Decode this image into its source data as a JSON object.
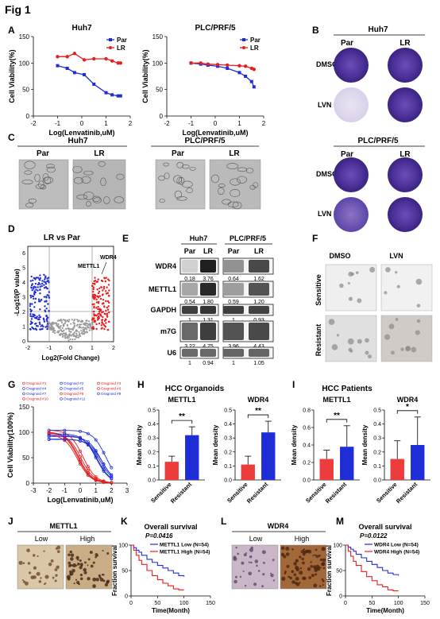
{
  "figure_title": "Fig 1",
  "panels": {
    "A": "A",
    "B": "B",
    "C": "C",
    "D": "D",
    "E": "E",
    "F": "F",
    "G": "G",
    "H": "H",
    "I": "I",
    "J": "J",
    "K": "K",
    "L": "L",
    "M": "M"
  },
  "colors": {
    "par": "#1f2dd6",
    "lr": "#e81d1d",
    "blue_bar": "#1f2dd6",
    "red_bar": "#ee3b3b",
    "crystal": "#5b3fa8"
  },
  "panel_A": {
    "ylabel": "Cell Viability(%)",
    "xlabel": "Log(Lenvatinib,uM)",
    "legend": [
      "Par",
      "LR"
    ]
  },
  "panel_B": {
    "cell_lines": [
      "Huh7",
      "PLC/PRF/5"
    ],
    "columns": [
      "Par",
      "LR"
    ],
    "rows": [
      "DMSO",
      "LVN"
    ]
  },
  "panel_C": {
    "cell_lines": [
      "Huh7",
      "PLC/PRF/5"
    ],
    "columns": [
      "Par",
      "LR"
    ]
  },
  "panel_D": {
    "title": "LR vs Par",
    "ylabel": "-Log10(P value)",
    "xlabel": "Log2(Fold Change)",
    "annot1": "METTL1",
    "annot2": "WDR4",
    "xticks": [
      "-2",
      "-1",
      "0",
      "1",
      "2"
    ],
    "yticks": [
      "0",
      "1",
      "2",
      "3",
      "4",
      "5",
      "6"
    ]
  },
  "panel_E": {
    "cell_lines": [
      "Huh7",
      "PLC/PRF/5"
    ],
    "columns": [
      "Par",
      "LR",
      "Par",
      "LR"
    ],
    "rows": [
      {
        "label": "WDR4",
        "values": [
          "0.18",
          "3.76",
          "0.64",
          "1.62"
        ]
      },
      {
        "label": "METTL1",
        "values": [
          "0.54",
          "1.80",
          "0.59",
          "1.20"
        ]
      },
      {
        "label": "GAPDH",
        "values": [
          "1",
          "1.31",
          "1",
          "0.93"
        ]
      },
      {
        "label": "m7G",
        "values": [
          "3.22",
          "4.75",
          "3.96",
          "4.43"
        ]
      },
      {
        "label": "U6",
        "values": [
          "1",
          "0.94",
          "1",
          "1.05"
        ]
      }
    ]
  },
  "panel_F": {
    "columns": [
      "DMSO",
      "LVN"
    ],
    "rows": [
      "Sensitive",
      "Resistant"
    ]
  },
  "panel_G": {
    "ylabel": "Cell Viability(100%)",
    "xlabel": "Log(Lenvatinib,uM)",
    "legend": [
      "Oragnoid #1",
      "Oragnoid #2",
      "Oragnoid #3",
      "Oragnoid #4",
      "Oragnoid #5",
      "Oragnoid #6",
      "Oragnoid #7",
      "Oragnoid #8",
      "Oragnoid #9",
      "Oragnoid #10",
      "Oragnoid #11"
    ]
  },
  "panel_H": {
    "title": "HCC Organoids",
    "genes": [
      "METTL1",
      "WDR4"
    ],
    "ylabel": "Mean density",
    "groups": [
      "Sensitive",
      "Resistant"
    ],
    "sig": [
      "**",
      "**"
    ]
  },
  "panel_I": {
    "title": "HCC Patients",
    "genes": [
      "METTL1",
      "WDR4"
    ],
    "ylabel": "Mean density",
    "groups": [
      "Sensitive",
      "Resistant"
    ],
    "sig": [
      "**",
      "*"
    ]
  },
  "panel_J": {
    "gene": "METTL1",
    "columns": [
      "Low",
      "High"
    ]
  },
  "panel_K": {
    "title": "Overall survival",
    "pvalue": "P=0.0416",
    "legend": [
      "METTL1 Low (N=54)",
      "METTL1 High (N=54)"
    ],
    "ylabel": "Fraction survival",
    "xlabel": "Time(Month)"
  },
  "panel_L": {
    "gene": "WDR4",
    "columns": [
      "Low",
      "High"
    ]
  },
  "panel_M": {
    "title": "Overall survival",
    "pvalue": "P=0.0122",
    "legend": [
      "WDR4 Low (N=54)",
      "WDR4 High (N=54)"
    ],
    "ylabel": "Fraction survival",
    "xlabel": "Time(Month)"
  },
  "chart_data": [
    {
      "id": "A-Huh7",
      "type": "line",
      "title": "Huh7",
      "xlabel": "Log(Lenvatinib,uM)",
      "ylabel": "Cell Viability(%)",
      "xlim": [
        -2,
        2
      ],
      "ylim": [
        0,
        150
      ],
      "xticks": [
        -2,
        -1,
        0,
        1,
        2
      ],
      "yticks": [
        0,
        50,
        100,
        150
      ],
      "series": [
        {
          "name": "Par",
          "x": [
            -1,
            -0.6,
            -0.3,
            0.1,
            0.5,
            1,
            1.25,
            1.5,
            1.6
          ],
          "y": [
            95,
            90,
            82,
            78,
            60,
            44,
            40,
            38,
            38
          ]
        },
        {
          "name": "LR",
          "x": [
            -1,
            -0.6,
            -0.3,
            0.1,
            0.5,
            1,
            1.25,
            1.5,
            1.6
          ],
          "y": [
            112,
            112,
            118,
            106,
            108,
            108,
            104,
            100,
            100
          ]
        }
      ]
    },
    {
      "id": "A-PLC",
      "type": "line",
      "title": "PLC/PRF/5",
      "xlabel": "Log(Lenvatinib,uM)",
      "ylabel": "Cell Viability(%)",
      "xlim": [
        -2,
        2
      ],
      "ylim": [
        0,
        150
      ],
      "xticks": [
        -2,
        -1,
        0,
        1,
        2
      ],
      "yticks": [
        0,
        50,
        100,
        150
      ],
      "series": [
        {
          "name": "Par",
          "x": [
            -1,
            -0.6,
            -0.3,
            0.1,
            0.5,
            1,
            1.25,
            1.5,
            1.6
          ],
          "y": [
            100,
            98,
            96,
            94,
            90,
            82,
            75,
            65,
            55
          ]
        },
        {
          "name": "LR",
          "x": [
            -1,
            -0.6,
            -0.3,
            0.1,
            0.5,
            1,
            1.25,
            1.5,
            1.6
          ],
          "y": [
            100,
            100,
            98,
            97,
            96,
            95,
            94,
            90,
            88
          ]
        }
      ]
    },
    {
      "id": "H-METTL1",
      "type": "bar",
      "title": "METTL1",
      "categories": [
        "Sensitive",
        "Resistant"
      ],
      "values": [
        0.13,
        0.32
      ],
      "errors": [
        0.04,
        0.06
      ],
      "ylabel": "Mean density",
      "ylim": [
        0,
        0.5
      ],
      "yticks": [
        0.0,
        0.1,
        0.2,
        0.3,
        0.4,
        0.5
      ]
    },
    {
      "id": "H-WDR4",
      "type": "bar",
      "title": "WDR4",
      "categories": [
        "Sensitive",
        "Resistant"
      ],
      "values": [
        0.11,
        0.34
      ],
      "errors": [
        0.06,
        0.08
      ],
      "ylabel": "Mean density",
      "ylim": [
        0,
        0.5
      ],
      "yticks": [
        0.0,
        0.1,
        0.2,
        0.3,
        0.4,
        0.5
      ]
    },
    {
      "id": "I-METTL1",
      "type": "bar",
      "title": "METTL1",
      "categories": [
        "Sensitive",
        "Resistant"
      ],
      "values": [
        0.24,
        0.38
      ],
      "errors": [
        0.1,
        0.24
      ],
      "ylabel": "Mean density",
      "ylim": [
        0,
        0.8
      ],
      "yticks": [
        0.0,
        0.2,
        0.4,
        0.6,
        0.8
      ]
    },
    {
      "id": "I-WDR4",
      "type": "bar",
      "title": "WDR4",
      "categories": [
        "Sensitive",
        "Resistant"
      ],
      "values": [
        0.15,
        0.25
      ],
      "errors": [
        0.13,
        0.2
      ],
      "ylabel": "Mean density",
      "ylim": [
        0,
        0.5
      ],
      "yticks": [
        0.0,
        0.1,
        0.2,
        0.3,
        0.4,
        0.5
      ]
    },
    {
      "id": "K",
      "type": "line",
      "title": "Overall survival",
      "xlabel": "Time(Month)",
      "ylabel": "Fraction survival",
      "xlim": [
        0,
        150
      ],
      "ylim": [
        0,
        100
      ],
      "xticks": [
        0,
        50,
        100,
        150
      ],
      "yticks": [
        0,
        50,
        100
      ],
      "series": [
        {
          "name": "METTL1 Low (N=54)",
          "x": [
            0,
            5,
            10,
            15,
            20,
            30,
            40,
            50,
            60,
            70,
            80,
            90,
            100
          ],
          "y": [
            100,
            95,
            90,
            86,
            80,
            72,
            66,
            60,
            55,
            50,
            45,
            40,
            38
          ]
        },
        {
          "name": "METTL1 High (N=54)",
          "x": [
            0,
            5,
            10,
            15,
            20,
            30,
            40,
            50,
            60,
            70,
            80,
            90,
            100
          ],
          "y": [
            100,
            90,
            80,
            70,
            62,
            50,
            40,
            32,
            25,
            20,
            14,
            12,
            12
          ]
        }
      ]
    },
    {
      "id": "M",
      "type": "line",
      "title": "Overall survival",
      "xlabel": "Time(Month)",
      "ylabel": "Fraction survival",
      "xlim": [
        0,
        150
      ],
      "ylim": [
        0,
        100
      ],
      "xticks": [
        0,
        50,
        100,
        150
      ],
      "yticks": [
        0,
        50,
        100
      ],
      "series": [
        {
          "name": "WDR4 Low (N=54)",
          "x": [
            0,
            5,
            10,
            15,
            20,
            30,
            40,
            50,
            60,
            70,
            80,
            90,
            100
          ],
          "y": [
            100,
            96,
            92,
            88,
            82,
            75,
            68,
            62,
            56,
            50,
            45,
            42,
            40
          ]
        },
        {
          "name": "WDR4 High (N=54)",
          "x": [
            0,
            5,
            10,
            15,
            20,
            30,
            40,
            50,
            60,
            70,
            80,
            90,
            100
          ],
          "y": [
            100,
            88,
            78,
            68,
            60,
            48,
            38,
            30,
            22,
            18,
            12,
            10,
            10
          ]
        }
      ]
    }
  ]
}
